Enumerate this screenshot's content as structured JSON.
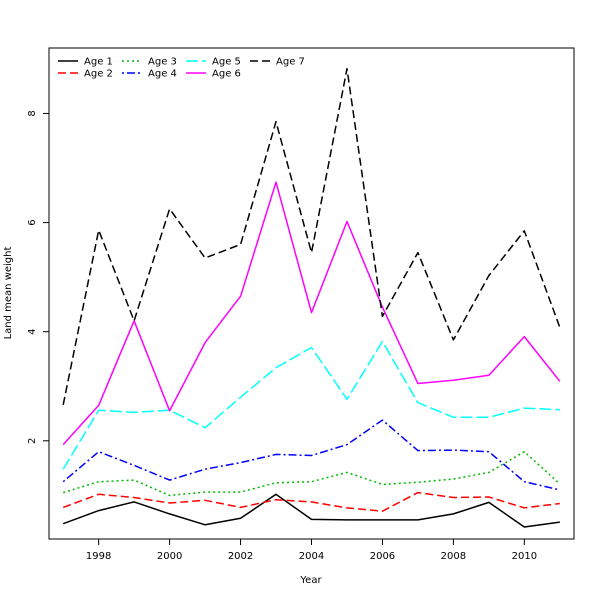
{
  "chart_data": {
    "type": "line",
    "xlabel": "Year",
    "ylabel": "Land mean weight",
    "xlim": [
      1996.6,
      2011.4
    ],
    "ylim": [
      0.2,
      9.2
    ],
    "x_ticks": [
      1998,
      2000,
      2002,
      2004,
      2006,
      2008,
      2010
    ],
    "y_ticks": [
      2,
      4,
      6,
      8
    ],
    "x": [
      1997,
      1998,
      1999,
      2000,
      2001,
      2002,
      2003,
      2004,
      2005,
      2006,
      2007,
      2008,
      2009,
      2010,
      2011
    ],
    "legend_position": "top-left",
    "series": [
      {
        "name": "Age 1",
        "color": "#000000",
        "dash": "solid",
        "values": [
          0.48,
          0.72,
          0.88,
          0.66,
          0.46,
          0.58,
          1.02,
          0.56,
          0.55,
          0.55,
          0.55,
          0.66,
          0.87,
          0.42,
          0.51
        ]
      },
      {
        "name": "Age 2",
        "color": "#ff0000",
        "dash": "dashed",
        "values": [
          0.78,
          1.02,
          0.96,
          0.86,
          0.91,
          0.78,
          0.92,
          0.88,
          0.77,
          0.71,
          1.05,
          0.96,
          0.97,
          0.77,
          0.85
        ]
      },
      {
        "name": "Age 3",
        "color": "#00bb00",
        "dash": "dotted",
        "values": [
          1.05,
          1.25,
          1.28,
          1.0,
          1.06,
          1.06,
          1.23,
          1.25,
          1.42,
          1.2,
          1.24,
          1.3,
          1.42,
          1.8,
          1.21
        ]
      },
      {
        "name": "Age 4",
        "color": "#0000ff",
        "dash": "dotdash",
        "values": [
          1.25,
          1.8,
          1.55,
          1.28,
          1.48,
          1.6,
          1.75,
          1.73,
          1.93,
          2.38,
          1.82,
          1.83,
          1.8,
          1.25,
          1.1
        ]
      },
      {
        "name": "Age 5",
        "color": "#00ffff",
        "dash": "longdash",
        "values": [
          1.48,
          2.56,
          2.52,
          2.56,
          2.24,
          2.8,
          3.34,
          3.71,
          2.76,
          3.82,
          2.7,
          2.43,
          2.43,
          2.6,
          2.57
        ]
      },
      {
        "name": "Age 6",
        "color": "#ff00ff",
        "dash": "solid",
        "values": [
          1.93,
          2.65,
          4.2,
          2.55,
          3.8,
          4.65,
          6.74,
          4.35,
          6.02,
          4.45,
          3.05,
          3.11,
          3.2,
          3.91,
          3.09
        ]
      },
      {
        "name": "Age 7",
        "color": "#000000",
        "dash": "dashed",
        "values": [
          2.66,
          5.86,
          4.2,
          6.25,
          5.35,
          5.6,
          7.85,
          5.45,
          8.82,
          4.28,
          5.45,
          3.85,
          5.03,
          5.85,
          4.08
        ]
      }
    ]
  }
}
